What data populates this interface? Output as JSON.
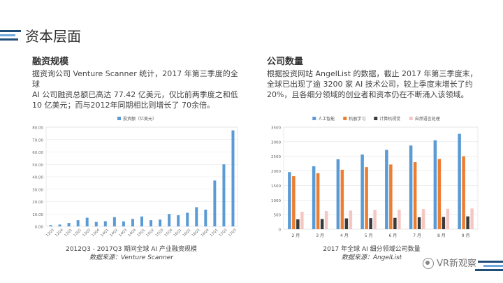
{
  "page": {
    "title": "资本层面"
  },
  "left": {
    "heading": "融资规模",
    "paragraph_lines": [
      "据资询公司 Venture Scanner 统计，2017 年第三季度的全球",
      "AI 公司融资总额已高达 77.42 亿美元，仅比前两季度之和低",
      "10 亿美元；而与2012年同期相比则增长了 70余倍。"
    ],
    "caption": "2012Q3 - 2017Q3 期间全球 AI 产业融资规模",
    "source": "数据来源：Venture Scanner"
  },
  "right": {
    "heading": "公司数量",
    "paragraph_lines": [
      "根据投资网站 AngelList 的数据，截止 2017 年第三季度末，",
      "全球已出现了逾 3200 家 AI 技术公司，较上季度末增长了约",
      "20%，且各细分领域的创业者和资本仍在不断涌入该领域。"
    ],
    "caption": "2017 年全球 AI 细分领域公司数量",
    "source": "数据来源：AngelList"
  },
  "watermark": {
    "text": "VR新观察",
    "icon": "wechat-icon"
  },
  "chart_data": [
    {
      "type": "bar",
      "legend": [
        "投资额（亿美元）"
      ],
      "legend_position": "top",
      "categories": [
        "12Q3",
        "12Q4",
        "13Q1",
        "13Q2",
        "13Q3",
        "13Q4",
        "14Q1",
        "14Q2",
        "14Q3",
        "14Q4",
        "15Q1",
        "15Q2",
        "15Q3",
        "15Q4",
        "16Q1",
        "16Q2",
        "16Q3",
        "16Q4",
        "17Q1",
        "17Q2",
        "17Q3"
      ],
      "series": [
        {
          "name": "投资额（亿美元）",
          "color": "#5b9bd5",
          "values": [
            1.0,
            1.5,
            2.8,
            5.0,
            7.0,
            3.6,
            4.2,
            7.5,
            4.0,
            6.0,
            8.0,
            5.0,
            5.5,
            10.0,
            9.0,
            11.0,
            15.5,
            13.5,
            37.0,
            50.0,
            77.42
          ]
        }
      ],
      "yticks": [
        "0.00",
        "10.00",
        "20.00",
        "30.00",
        "40.00",
        "50.00",
        "60.00",
        "70.00",
        "80.00"
      ],
      "ylim": [
        0,
        80
      ],
      "grid": true
    },
    {
      "type": "bar",
      "legend_position": "top",
      "categories": [
        "2 月",
        "3 月",
        "4 月",
        "5 月",
        "6 月",
        "7 月",
        "8 月",
        "9 月"
      ],
      "series": [
        {
          "name": "人工智能",
          "color": "#5b9bd5",
          "values": [
            1960,
            2160,
            2400,
            2560,
            2720,
            2870,
            3050,
            3270
          ]
        },
        {
          "name": "机器学习",
          "color": "#ed7d31",
          "values": [
            1820,
            1920,
            2040,
            2130,
            2220,
            2300,
            2410,
            2500
          ]
        },
        {
          "name": "计算机视觉",
          "color": "#3a3a3a",
          "values": [
            340,
            350,
            370,
            380,
            390,
            410,
            420,
            440
          ]
        },
        {
          "name": "自然语言处理",
          "color": "#f4c7c3",
          "values": [
            600,
            620,
            640,
            660,
            670,
            690,
            700,
            710
          ]
        }
      ],
      "yticks": [
        "0",
        "500",
        "1000",
        "1500",
        "2000",
        "2500",
        "3000",
        "3500"
      ],
      "ylim": [
        0,
        3500
      ],
      "grid": true
    }
  ]
}
